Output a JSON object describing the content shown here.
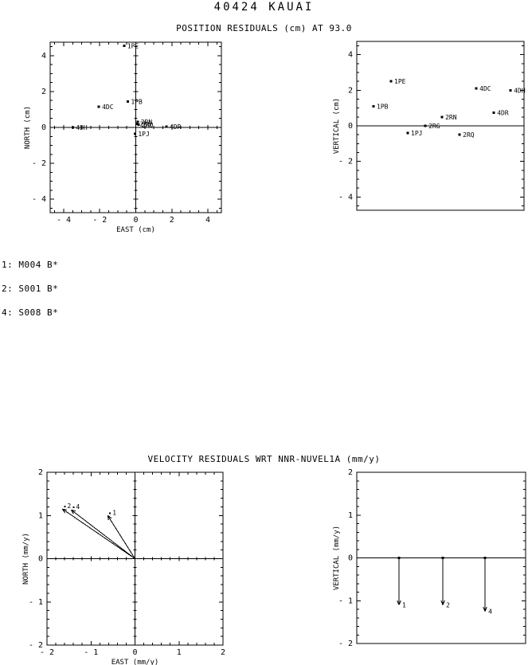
{
  "page": {
    "title": "40424 KAUAI",
    "background": "#ffffff",
    "text_color": "#000000"
  },
  "position_section": {
    "title": "POSITION RESIDUALS (cm) AT 93.0"
  },
  "velocity_section": {
    "title": "VELOCITY RESIDUALS WRT NNR-NUVEL1A (mm/y)"
  },
  "legend": {
    "items": [
      "1: M004 B*",
      "2: S001 B*",
      "4: S008 B*"
    ]
  },
  "chart_data": [
    {
      "type": "scatter",
      "title": "POSITION RESIDUALS (cm) AT 93.0",
      "xlabel": "EAST (cm)",
      "ylabel": "NORTH (cm)",
      "xlim": [
        -4.75,
        4.75
      ],
      "ylim": [
        -4.75,
        4.75
      ],
      "xticks": [
        -4,
        -2,
        0,
        2,
        4
      ],
      "yticks": [
        -4,
        -2,
        0,
        2,
        4
      ],
      "xtick_labels": [
        "- 4",
        "- 2",
        "0",
        "2",
        "4"
      ],
      "ytick_labels": [
        "- 4",
        "- 2",
        "0",
        "2",
        "4"
      ],
      "minor_step": 0.5,
      "crosshair": true,
      "grid": false,
      "points": [
        {
          "label": "1PE",
          "x": -0.65,
          "y": 4.55
        },
        {
          "label": "1PB",
          "x": -0.45,
          "y": 1.45
        },
        {
          "label": "4DC",
          "x": -2.05,
          "y": 1.15
        },
        {
          "label": "4DH",
          "x": -3.5,
          "y": 0.0
        },
        {
          "label": "2RN",
          "x": 0.1,
          "y": 0.3
        },
        {
          "label": "2RG",
          "x": 0.05,
          "y": 0.2
        },
        {
          "label": "2RQ",
          "x": 0.15,
          "y": 0.15
        },
        {
          "label": "4DR",
          "x": 1.7,
          "y": 0.05
        },
        {
          "label": "1PJ",
          "x": -0.05,
          "y": -0.35
        }
      ]
    },
    {
      "type": "scatter_vertical",
      "ylabel": "VERTICAL (cm)",
      "ylim": [
        -4.75,
        4.75
      ],
      "yticks": [
        -4,
        -2,
        0,
        2,
        4
      ],
      "ytick_labels": [
        "- 4",
        "- 2",
        "0",
        "2",
        "4"
      ],
      "minor_step": 0.5,
      "zero_line": true,
      "points": [
        {
          "label": "1PB",
          "xfrac": 0.1,
          "y": 1.1
        },
        {
          "label": "1PE",
          "xfrac": 0.205,
          "y": 2.5
        },
        {
          "label": "1PJ",
          "xfrac": 0.305,
          "y": -0.4
        },
        {
          "label": "2RG",
          "xfrac": 0.41,
          "y": 0.0
        },
        {
          "label": "2RN",
          "xfrac": 0.51,
          "y": 0.5
        },
        {
          "label": "2RQ",
          "xfrac": 0.615,
          "y": -0.5
        },
        {
          "label": "4DC",
          "xfrac": 0.715,
          "y": 2.1
        },
        {
          "label": "4DR",
          "xfrac": 0.82,
          "y": 0.75
        },
        {
          "label": "4DH",
          "xfrac": 0.92,
          "y": 2.0
        }
      ]
    },
    {
      "type": "vector",
      "title": "VELOCITY RESIDUALS WRT NNR-NUVEL1A (mm/y)",
      "xlabel": "EAST (mm/y)",
      "ylabel": "NORTH (mm/y)",
      "xlim": [
        -2,
        2
      ],
      "ylim": [
        -2,
        2
      ],
      "xticks": [
        -2,
        -1,
        0,
        1,
        2
      ],
      "yticks": [
        -2,
        -1,
        0,
        1,
        2
      ],
      "xtick_labels": [
        "- 2",
        "- 1",
        "0",
        "1",
        "2"
      ],
      "ytick_labels": [
        "- 2",
        "- 1",
        "0",
        "1",
        "2"
      ],
      "minor_step": 0.2,
      "crosshair": true,
      "vectors": [
        {
          "label": "2",
          "east": -1.65,
          "north": 1.15
        },
        {
          "label": "4",
          "east": -1.45,
          "north": 1.13
        },
        {
          "label": "1",
          "east": -0.62,
          "north": 1.0
        }
      ]
    },
    {
      "type": "vector_vertical",
      "ylabel": "VERTICAL (mm/y)",
      "ylim": [
        -2,
        2
      ],
      "yticks": [
        -2,
        -1,
        0,
        1,
        2
      ],
      "ytick_labels": [
        "- 2",
        "- 1",
        "0",
        "1",
        "2"
      ],
      "minor_step": 0.2,
      "zero_line": true,
      "arrows": [
        {
          "label": "1",
          "xfrac": 0.25,
          "vertical": -1.1
        },
        {
          "label": "2",
          "xfrac": 0.51,
          "vertical": -1.1
        },
        {
          "label": "4",
          "xfrac": 0.76,
          "vertical": -1.25
        }
      ]
    }
  ]
}
